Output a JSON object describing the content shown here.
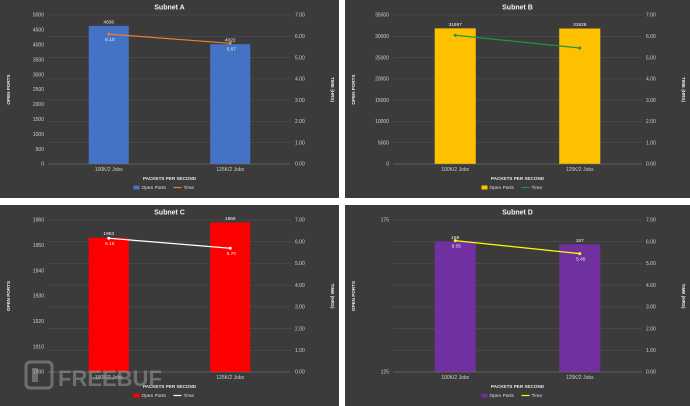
{
  "chart_data": [
    {
      "type": "bar",
      "title": "Subnet A",
      "categories": [
        "100K/2 Jobs",
        "125K/2 Jobs"
      ],
      "xlabel": "PACKETS PER SECOND",
      "ylabel": "OPEN PORTS",
      "y2label": "TIME (HRS)",
      "ylim": [
        0,
        5000
      ],
      "yticks": [
        0,
        500,
        1000,
        1500,
        2000,
        2500,
        3000,
        3500,
        4000,
        4500,
        5000
      ],
      "ytick_labels": [
        "0",
        "500",
        "1000",
        "1500",
        "2000",
        "2500",
        "3000",
        "3500",
        "4000",
        "4500",
        "5000"
      ],
      "y2lim": [
        0,
        7
      ],
      "y2ticks": [
        0,
        1,
        2,
        3,
        4,
        5,
        6,
        7
      ],
      "y2tick_labels": [
        "0.00",
        "1.00",
        "2.00",
        "3.00",
        "4.00",
        "5.00",
        "6.00",
        "7.00"
      ],
      "series": [
        {
          "name": "Open Ports",
          "kind": "bar",
          "axis": "left",
          "values": [
            4636,
            4022
          ],
          "labels": [
            "4636",
            "4022"
          ],
          "color": "#4472c4"
        },
        {
          "name": "Time",
          "kind": "line",
          "axis": "right",
          "values": [
            6.1,
            5.67
          ],
          "labels": [
            "6.10",
            "5.67"
          ],
          "color": "#ed7d31"
        }
      ],
      "legend": "bottom",
      "grid": true
    },
    {
      "type": "bar",
      "title": "Subnet B",
      "categories": [
        "100K/2 Jobs",
        "125K/2 Jobs"
      ],
      "xlabel": "PACKETS PER SECOND",
      "ylabel": "OPEN PORTS",
      "y2label": "TIME (HRS)",
      "ylim": [
        0,
        35000
      ],
      "yticks": [
        0,
        5000,
        10000,
        15000,
        20000,
        25000,
        30000,
        35000
      ],
      "ytick_labels": [
        "0",
        "5000",
        "10000",
        "15000",
        "20000",
        "25000",
        "30000",
        "35000"
      ],
      "y2lim": [
        0,
        7
      ],
      "y2ticks": [
        0,
        1,
        2,
        3,
        4,
        5,
        6,
        7
      ],
      "y2tick_labels": [
        "0.00",
        "1.00",
        "2.00",
        "3.00",
        "4.00",
        "5.00",
        "6.00",
        "7.00"
      ],
      "series": [
        {
          "name": "Open Ports",
          "kind": "bar",
          "axis": "left",
          "values": [
            31867,
            31828
          ],
          "labels": [
            "31867",
            "31828"
          ],
          "color": "#ffc000"
        },
        {
          "name": "Time",
          "kind": "line",
          "axis": "right",
          "values": [
            6.05,
            5.45
          ],
          "labels": [
            "",
            ""
          ],
          "color": "#1a9641"
        }
      ],
      "legend": "bottom",
      "grid": true
    },
    {
      "type": "bar",
      "title": "Subnet C",
      "categories": [
        "100K/2 Jobs",
        "125K/2 Jobs"
      ],
      "xlabel": "PACKETS PER SECOND",
      "ylabel": "OPEN PORTS",
      "y2label": "TIME (HRS)",
      "ylim": [
        1900,
        1960
      ],
      "yticks": [
        1900,
        1910,
        1920,
        1930,
        1940,
        1950,
        1960
      ],
      "ytick_labels": [
        "1900",
        "1910",
        "1920",
        "1930",
        "1940",
        "1950",
        "1960"
      ],
      "y2lim": [
        0,
        7
      ],
      "y2ticks": [
        0,
        1,
        2,
        3,
        4,
        5,
        6,
        7
      ],
      "y2tick_labels": [
        "0.00",
        "1.00",
        "2.00",
        "3.00",
        "4.00",
        "5.00",
        "6.00",
        "7.00"
      ],
      "series": [
        {
          "name": "Open Ports",
          "kind": "bar",
          "axis": "left",
          "values": [
            1953,
            1959
          ],
          "labels": [
            "1953",
            "1959"
          ],
          "color": "#ff0000"
        },
        {
          "name": "Time",
          "kind": "line",
          "axis": "right",
          "values": [
            6.16,
            5.7
          ],
          "labels": [
            "6.16",
            "5.70"
          ],
          "color": "#ffffff"
        }
      ],
      "legend": "bottom",
      "grid": true
    },
    {
      "type": "bar",
      "title": "Subnet D",
      "categories": [
        "100K/2 Jobs",
        "125K/2 Jobs"
      ],
      "xlabel": "PACKETS PER SECOND",
      "ylabel": "OPEN PORTS",
      "y2label": "TIME (HRS)",
      "ylim": [
        125,
        175
      ],
      "yticks": [
        125,
        175
      ],
      "ytick_labels": [
        "125",
        "175"
      ],
      "y2lim": [
        0,
        7
      ],
      "y2ticks": [
        0,
        1,
        2,
        3,
        4,
        5,
        6,
        7
      ],
      "y2tick_labels": [
        "0.00",
        "1.00",
        "2.00",
        "3.00",
        "4.00",
        "5.00",
        "6.00",
        "7.00"
      ],
      "series": [
        {
          "name": "Open Ports",
          "kind": "bar",
          "axis": "left",
          "values": [
            168,
            167
          ],
          "labels": [
            "168",
            "167"
          ],
          "color": "#7030a0"
        },
        {
          "name": "Time",
          "kind": "line",
          "axis": "right",
          "values": [
            6.05,
            5.45
          ],
          "labels": [
            "6.05",
            "5.45"
          ],
          "color": "#ffff00"
        }
      ],
      "legend": "bottom",
      "grid": true
    }
  ],
  "watermark": {
    "text": "FREEBUF",
    "color": "#9a9a9a"
  }
}
